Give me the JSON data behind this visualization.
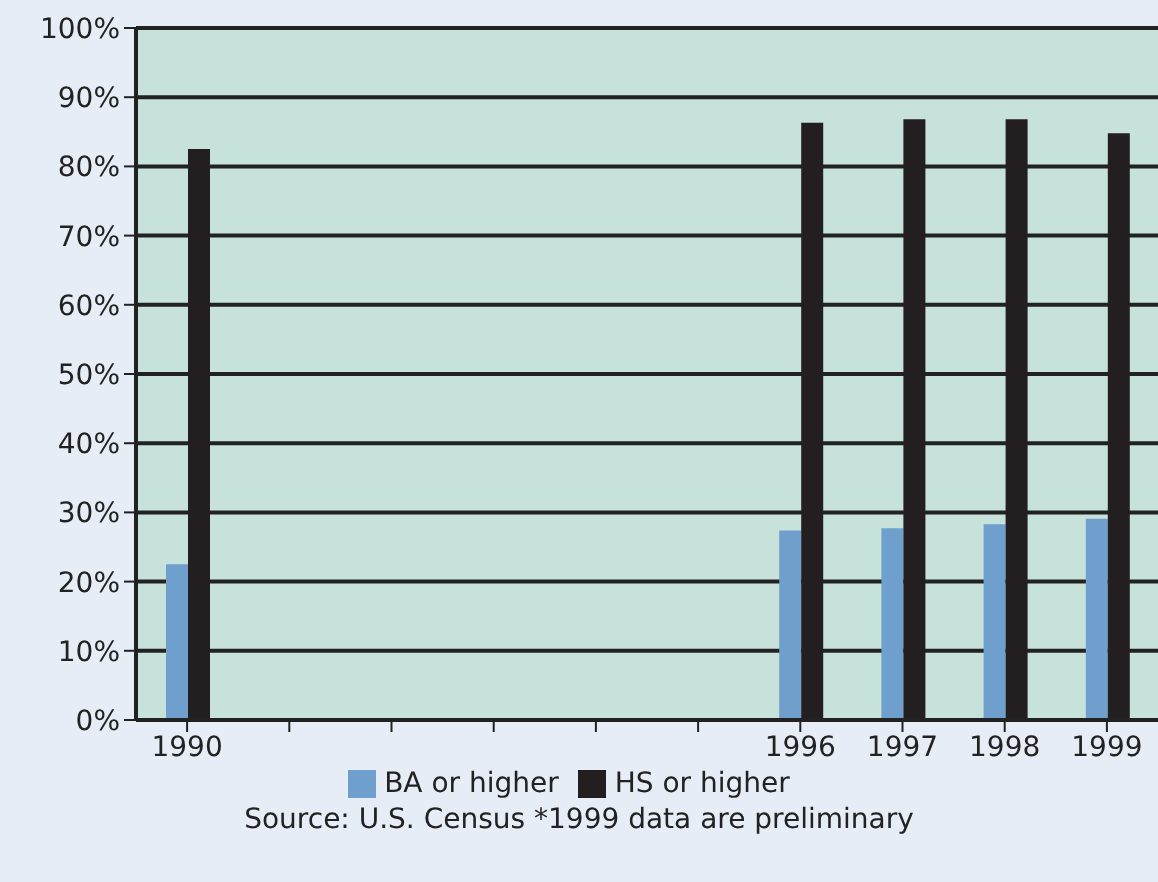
{
  "chart_data": {
    "type": "bar",
    "categories": [
      "1990",
      null,
      null,
      null,
      null,
      null,
      "1996",
      "1997",
      "1998",
      "1999"
    ],
    "series": [
      {
        "name": "BA or higher",
        "color": "#6f9fcc",
        "values": [
          22.5,
          null,
          null,
          null,
          null,
          null,
          27.4,
          27.7,
          28.3,
          29.1
        ]
      },
      {
        "name": "HS or higher",
        "color": "#231f20",
        "values": [
          82.5,
          null,
          null,
          null,
          null,
          null,
          86.3,
          86.8,
          86.8,
          84.8
        ]
      }
    ],
    "ylim": [
      0,
      100
    ],
    "yticks": [
      {
        "value": 0,
        "label": "0%"
      },
      {
        "value": 10,
        "label": "10%"
      },
      {
        "value": 20,
        "label": "20%"
      },
      {
        "value": 30,
        "label": "30%"
      },
      {
        "value": 40,
        "label": "40%"
      },
      {
        "value": 50,
        "label": "50%"
      },
      {
        "value": 60,
        "label": "60%"
      },
      {
        "value": 70,
        "label": "70%"
      },
      {
        "value": 80,
        "label": "80%"
      },
      {
        "value": 90,
        "label": "90%"
      },
      {
        "value": 100,
        "label": "100%"
      }
    ],
    "grid": "y",
    "legend": "bottom",
    "annotations": [
      "Source: U.S. Census *1999 data are preliminary"
    ]
  }
}
